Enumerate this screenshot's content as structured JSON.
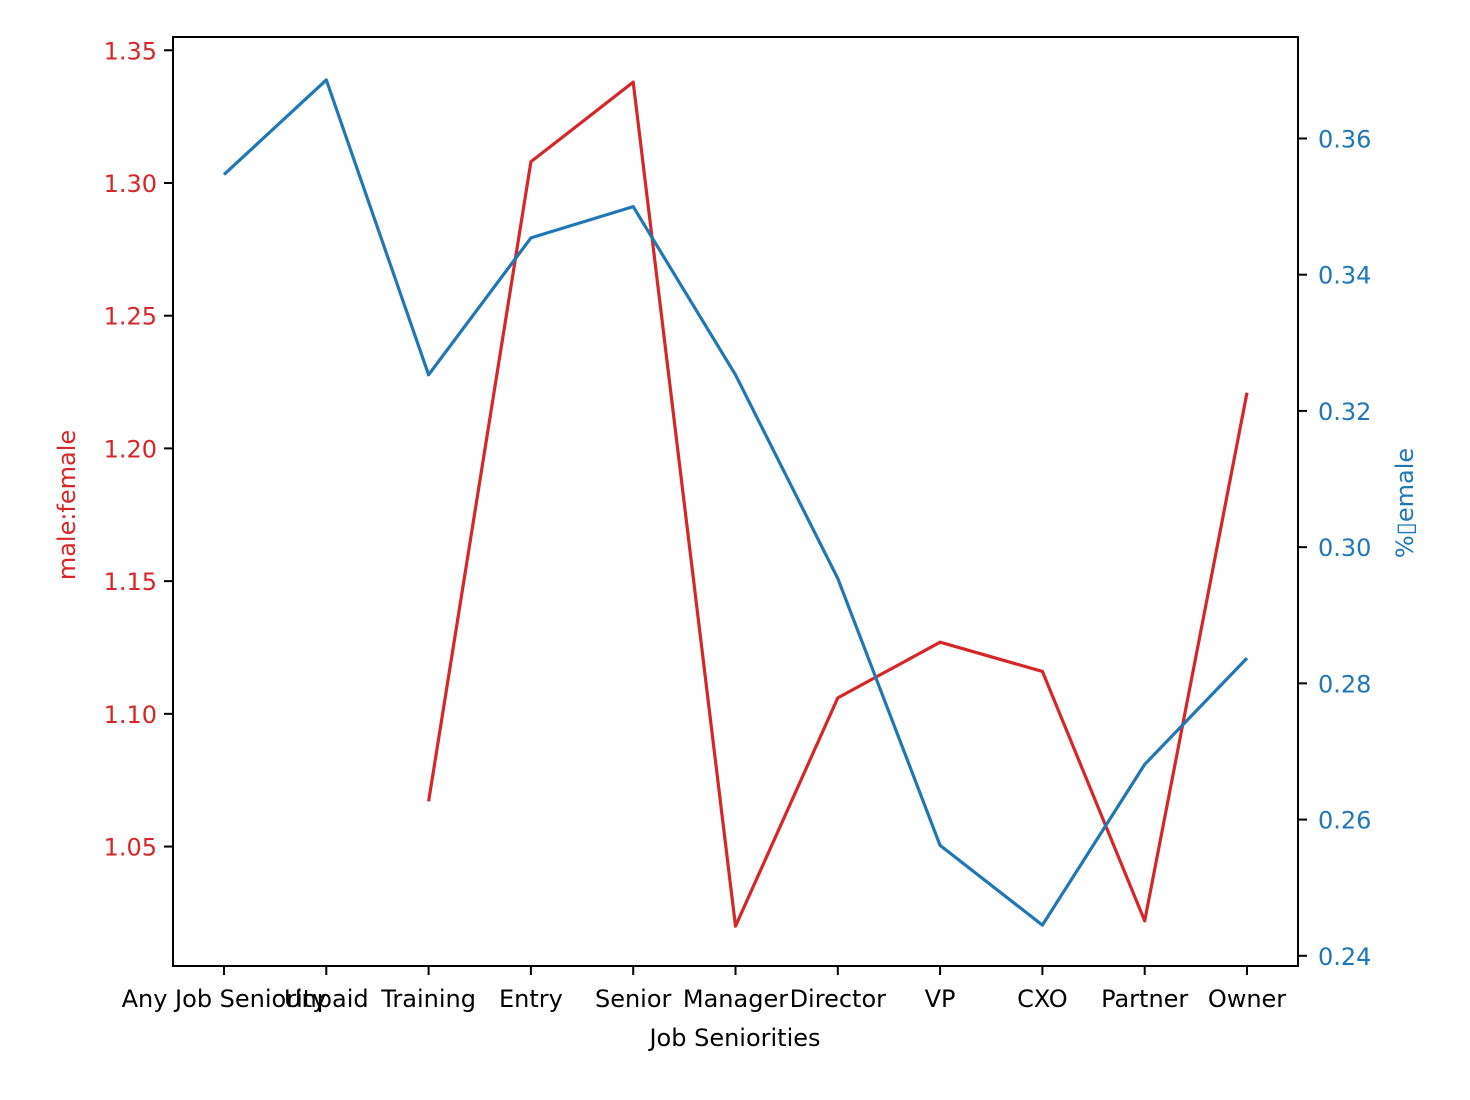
{
  "chart_data": {
    "type": "line",
    "xlabel": "Job Seniorities",
    "categories": [
      "Any Job Seniority",
      "Unpaid",
      "Training",
      "Entry",
      "Senior",
      "Manager",
      "Director",
      "VP",
      "CXO",
      "Partner",
      "Owner"
    ],
    "left_axis": {
      "label": "male:female",
      "color": "#d62728",
      "ylim": [
        1.005,
        1.355
      ],
      "ticks": [
        "1.05",
        "1.10",
        "1.15",
        "1.20",
        "1.25",
        "1.30",
        "1.35"
      ]
    },
    "right_axis": {
      "label": "%▯emale",
      "color": "#1f77b4",
      "ylim": [
        0.2385,
        0.3749
      ],
      "ticks": [
        "0.24",
        "0.26",
        "0.28",
        "0.30",
        "0.32",
        "0.34",
        "0.36"
      ]
    },
    "series": [
      {
        "axis": "left",
        "color": "#d62728",
        "values": [
          null,
          null,
          1.067,
          1.308,
          1.338,
          1.02,
          1.106,
          1.127,
          1.116,
          1.022,
          1.221
        ]
      },
      {
        "axis": "right",
        "color": "#1f77b4",
        "values": [
          0.3547,
          0.3686,
          0.3253,
          0.3454,
          0.35,
          0.3253,
          0.2954,
          0.2562,
          0.2445,
          0.2681,
          0.2837
        ]
      }
    ]
  }
}
